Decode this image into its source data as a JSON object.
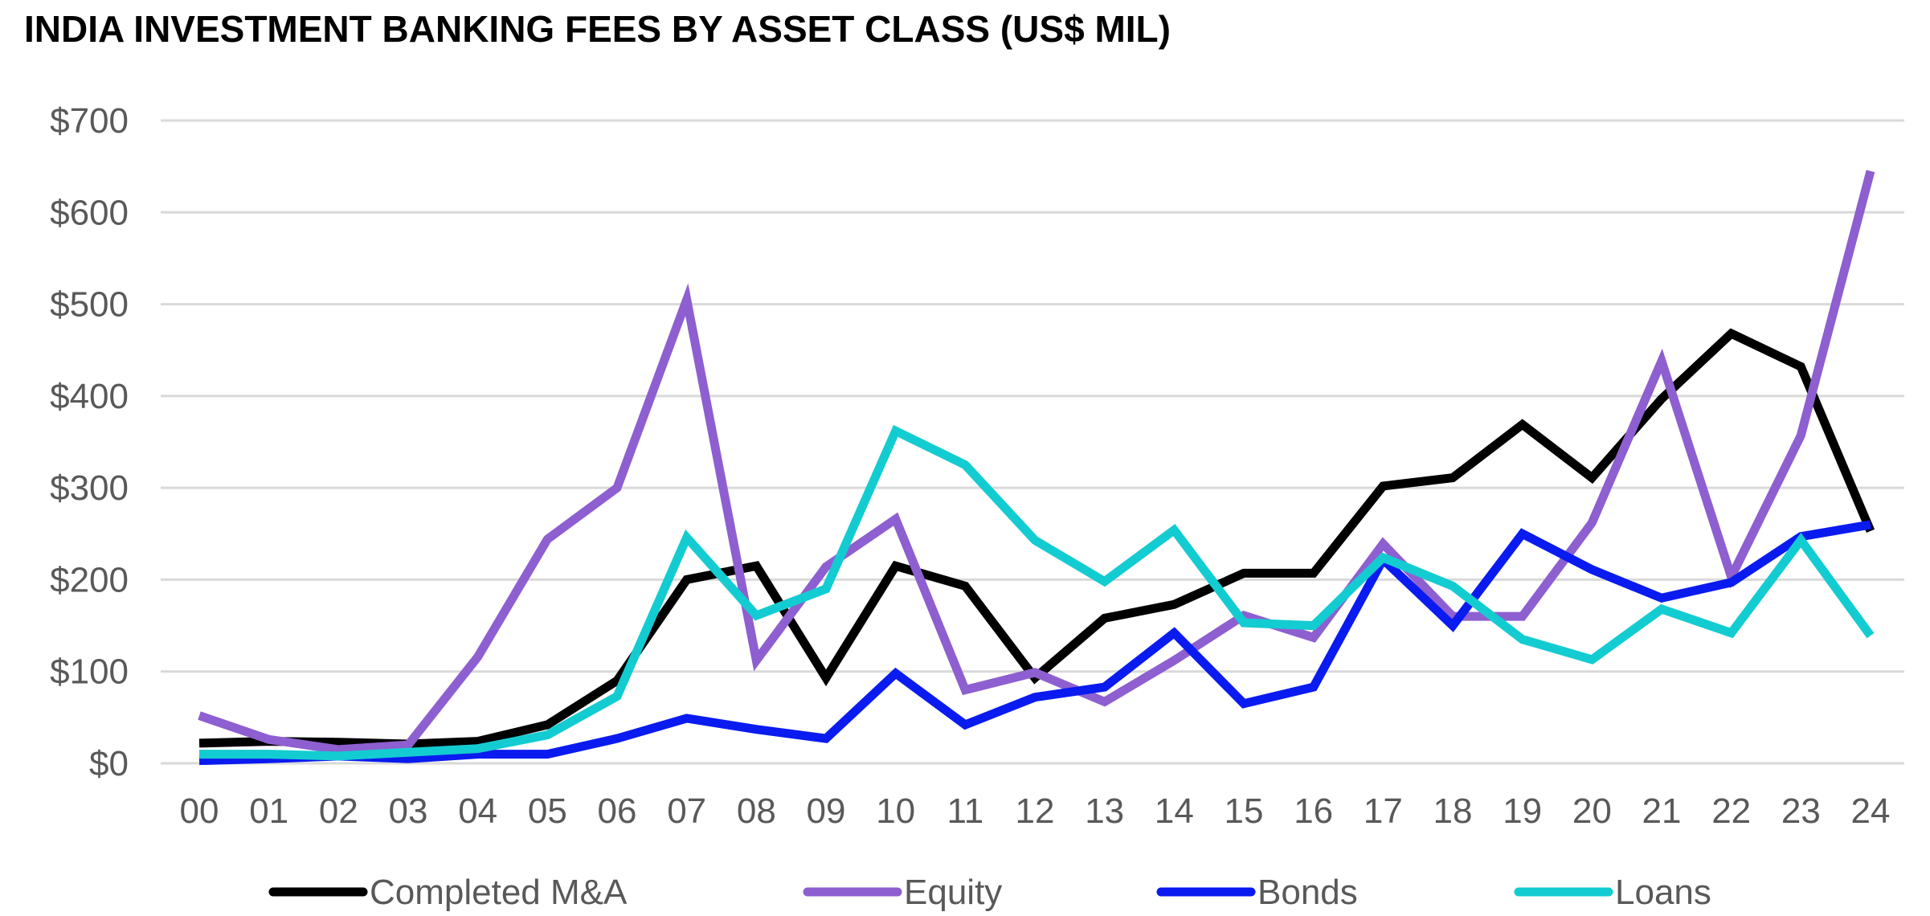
{
  "chart_data": {
    "type": "line",
    "title": "INDIA INVESTMENT BANKING FEES BY ASSET CLASS (US$ MIL)",
    "xlabel": "",
    "ylabel": "",
    "categories": [
      "00",
      "01",
      "02",
      "03",
      "04",
      "05",
      "06",
      "07",
      "08",
      "09",
      "10",
      "11",
      "12",
      "13",
      "14",
      "15",
      "16",
      "17",
      "18",
      "19",
      "20",
      "21",
      "22",
      "23",
      "24"
    ],
    "ylim": [
      0,
      700
    ],
    "yticks": [
      0,
      100,
      200,
      300,
      400,
      500,
      600,
      700
    ],
    "ytick_labels": [
      "$0",
      "$100",
      "$200",
      "$300",
      "$400",
      "$500",
      "$600",
      "$700"
    ],
    "grid": true,
    "legend_position": "bottom",
    "series": [
      {
        "name": "Completed M&A",
        "color": "#000000",
        "values": [
          22,
          24,
          23,
          21,
          24,
          42,
          90,
          200,
          215,
          93,
          215,
          193,
          93,
          158,
          173,
          207,
          207,
          302,
          311,
          369,
          311,
          397,
          468,
          432,
          253
        ]
      },
      {
        "name": "Equity",
        "color": "#8E5FD0",
        "values": [
          52,
          26,
          15,
          20,
          116,
          244,
          300,
          505,
          112,
          214,
          266,
          80,
          99,
          67,
          112,
          161,
          137,
          239,
          160,
          160,
          262,
          438,
          203,
          357,
          645
        ]
      },
      {
        "name": "Bonds",
        "color": "#0A1BF0",
        "values": [
          3,
          5,
          8,
          5,
          10,
          10,
          27,
          49,
          37,
          27,
          98,
          42,
          72,
          83,
          142,
          65,
          83,
          222,
          150,
          250,
          211,
          180,
          197,
          247,
          260
        ]
      },
      {
        "name": "Loans",
        "color": "#13CCD1",
        "values": [
          10,
          10,
          8,
          12,
          16,
          31,
          73,
          246,
          161,
          190,
          362,
          325,
          243,
          198,
          254,
          153,
          150,
          224,
          193,
          135,
          113,
          168,
          142,
          243,
          139
        ]
      }
    ]
  }
}
